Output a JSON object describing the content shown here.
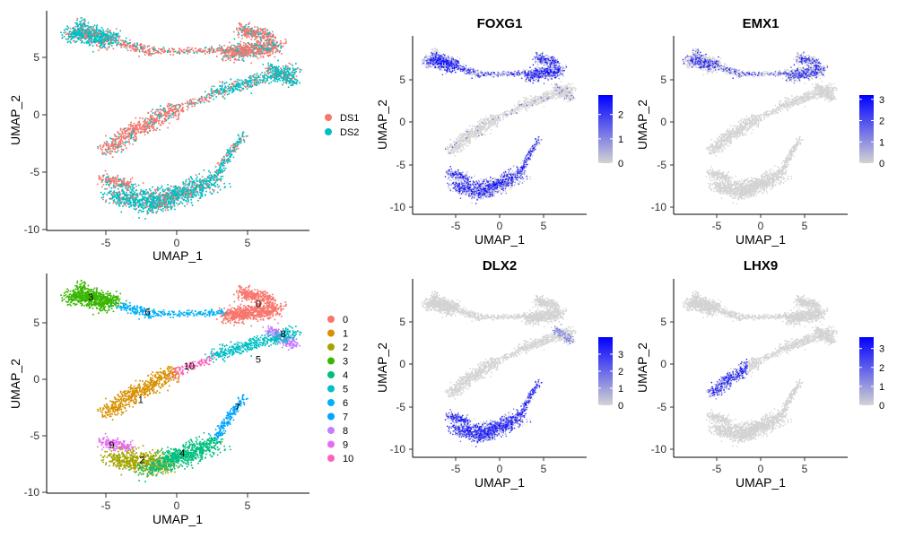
{
  "chart_data": [
    {
      "id": "dataset",
      "type": "scatter",
      "title": "",
      "xlabel": "UMAP_1",
      "ylabel": "UMAP_2",
      "xlim": [
        -9.8,
        9.2
      ],
      "ylim": [
        -10.4,
        8.6
      ],
      "xticks": [
        "-5",
        "0",
        "5"
      ],
      "yticks": [
        "-10",
        "-5",
        "0",
        "5"
      ],
      "legend_type": "discrete",
      "legend": [
        {
          "label": "DS1",
          "color": "#F8766D"
        },
        {
          "label": "DS2",
          "color": "#00BFC4"
        }
      ]
    },
    {
      "id": "cluster",
      "type": "scatter",
      "title": "",
      "xlabel": "UMAP_1",
      "ylabel": "UMAP_2",
      "xlim": [
        -9.8,
        9.2
      ],
      "ylim": [
        -10.4,
        8.6
      ],
      "xticks": [
        "-5",
        "0",
        "5"
      ],
      "yticks": [
        "-10",
        "-5",
        "0",
        "5"
      ],
      "legend_type": "discrete",
      "legend": [
        {
          "label": "0",
          "color": "#F8766D"
        },
        {
          "label": "1",
          "color": "#D89000"
        },
        {
          "label": "2",
          "color": "#A3A500"
        },
        {
          "label": "3",
          "color": "#39B600"
        },
        {
          "label": "4",
          "color": "#00BF7D"
        },
        {
          "label": "5",
          "color": "#00BFC4"
        },
        {
          "label": "6",
          "color": "#00B0F6"
        },
        {
          "label": "7",
          "color": "#00A5FF"
        },
        {
          "label": "8",
          "color": "#C77CFF"
        },
        {
          "label": "9",
          "color": "#E76BF3"
        },
        {
          "label": "10",
          "color": "#FF62BC"
        }
      ],
      "cluster_labels": [
        {
          "label": "0",
          "x": 5.5,
          "y": 6.0
        },
        {
          "label": "1",
          "x": -3.0,
          "y": -2.3
        },
        {
          "label": "2",
          "x": -2.9,
          "y": -7.5
        },
        {
          "label": "3",
          "x": -6.6,
          "y": 6.6
        },
        {
          "label": "4",
          "x": 0.0,
          "y": -6.9
        },
        {
          "label": "5",
          "x": 5.5,
          "y": 1.2
        },
        {
          "label": "6",
          "x": -2.5,
          "y": 5.3
        },
        {
          "label": "7",
          "x": 4.0,
          "y": -2.9
        },
        {
          "label": "8",
          "x": 7.3,
          "y": 3.4
        },
        {
          "label": "9",
          "x": -5.1,
          "y": -6.2
        },
        {
          "label": "10",
          "x": 0.5,
          "y": 0.6
        }
      ]
    },
    {
      "id": "foxg1",
      "type": "scatter",
      "title": "FOXG1",
      "xlabel": "UMAP_1",
      "ylabel": "UMAP_2",
      "xlim": [
        -9.8,
        9.8
      ],
      "ylim": [
        -10.6,
        9.4
      ],
      "xticks": [
        "-5",
        "0",
        "5"
      ],
      "yticks": [
        "-10",
        "-5",
        "0",
        "5"
      ],
      "legend_type": "continuous",
      "scale_low": "#D3D3D3",
      "scale_high": "#0000FF",
      "scale_ticks": [
        "0",
        "1",
        "2"
      ],
      "scale_max": 2.8
    },
    {
      "id": "emx1",
      "type": "scatter",
      "title": "EMX1",
      "xlabel": "UMAP_1",
      "ylabel": "UMAP_2",
      "xlim": [
        -9.8,
        9.8
      ],
      "ylim": [
        -10.6,
        9.4
      ],
      "xticks": [
        "-5",
        "0",
        "5"
      ],
      "yticks": [
        "-10",
        "-5",
        "0",
        "5"
      ],
      "legend_type": "continuous",
      "scale_low": "#D3D3D3",
      "scale_high": "#0000FF",
      "scale_ticks": [
        "0",
        "1",
        "2",
        "3"
      ],
      "scale_max": 3.2
    },
    {
      "id": "dlx2",
      "type": "scatter",
      "title": "DLX2",
      "xlabel": "UMAP_1",
      "ylabel": "UMAP_2",
      "xlim": [
        -9.8,
        9.8
      ],
      "ylim": [
        -10.6,
        9.4
      ],
      "xticks": [
        "-5",
        "0",
        "5"
      ],
      "yticks": [
        "-10",
        "-5",
        "0",
        "5"
      ],
      "legend_type": "continuous",
      "scale_low": "#D3D3D3",
      "scale_high": "#0000FF",
      "scale_ticks": [
        "0",
        "1",
        "2",
        "3"
      ],
      "scale_max": 4.0
    },
    {
      "id": "lhx9",
      "type": "scatter",
      "title": "LHX9",
      "xlabel": "UMAP_1",
      "ylabel": "UMAP_2",
      "xlim": [
        -9.8,
        9.8
      ],
      "ylim": [
        -10.6,
        9.4
      ],
      "xticks": [
        "-5",
        "0",
        "5"
      ],
      "yticks": [
        "-10",
        "-5",
        "0",
        "5"
      ],
      "legend_type": "continuous",
      "scale_low": "#D3D3D3",
      "scale_high": "#0000FF",
      "scale_ticks": [
        "0",
        "1",
        "2",
        "3"
      ],
      "scale_max": 3.6
    }
  ]
}
